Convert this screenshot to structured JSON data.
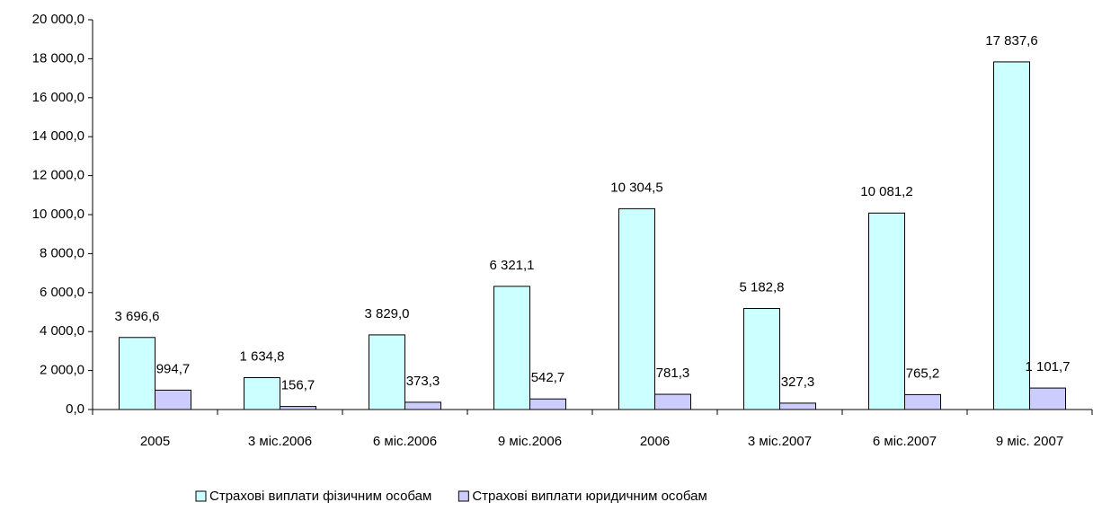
{
  "chart_data": {
    "type": "bar",
    "categories": [
      "2005",
      "3 міс.2006",
      "6 міс.2006",
      "9 міс.2006",
      "2006",
      "3 міс.2007",
      "6 міс.2007",
      "9 міс. 2007"
    ],
    "series": [
      {
        "name": "Страхові виплати фізичним особам",
        "color": "#ccffff",
        "values": [
          3696.6,
          1634.8,
          3829.0,
          6321.1,
          10304.5,
          5182.8,
          10081.2,
          17837.6
        ],
        "value_labels": [
          "3 696,6",
          "1 634,8",
          "3 829,0",
          "6 321,1",
          "10 304,5",
          "5 182,8",
          "10 081,2",
          "17 837,6"
        ]
      },
      {
        "name": "Страхові виплати юридичним особам",
        "color": "#ccccff",
        "values": [
          994.7,
          156.7,
          373.3,
          542.7,
          781.3,
          327.3,
          765.2,
          1101.7
        ],
        "value_labels": [
          "994,7",
          "156,7",
          "373,3",
          "542,7",
          "781,3",
          "327,3",
          "765,2",
          "1 101,7"
        ]
      }
    ],
    "ylim": [
      0,
      20000
    ],
    "yticks": [
      {
        "value": 0,
        "label": "0,0"
      },
      {
        "value": 2000,
        "label": "2 000,0"
      },
      {
        "value": 4000,
        "label": "4 000,0"
      },
      {
        "value": 6000,
        "label": "6 000,0"
      },
      {
        "value": 8000,
        "label": "8 000,0"
      },
      {
        "value": 10000,
        "label": "10 000,0"
      },
      {
        "value": 12000,
        "label": "12 000,0"
      },
      {
        "value": 14000,
        "label": "14 000,0"
      },
      {
        "value": 16000,
        "label": "16 000,0"
      },
      {
        "value": 18000,
        "label": "18 000,0"
      },
      {
        "value": 20000,
        "label": "20 000,0"
      }
    ],
    "grid": false
  }
}
